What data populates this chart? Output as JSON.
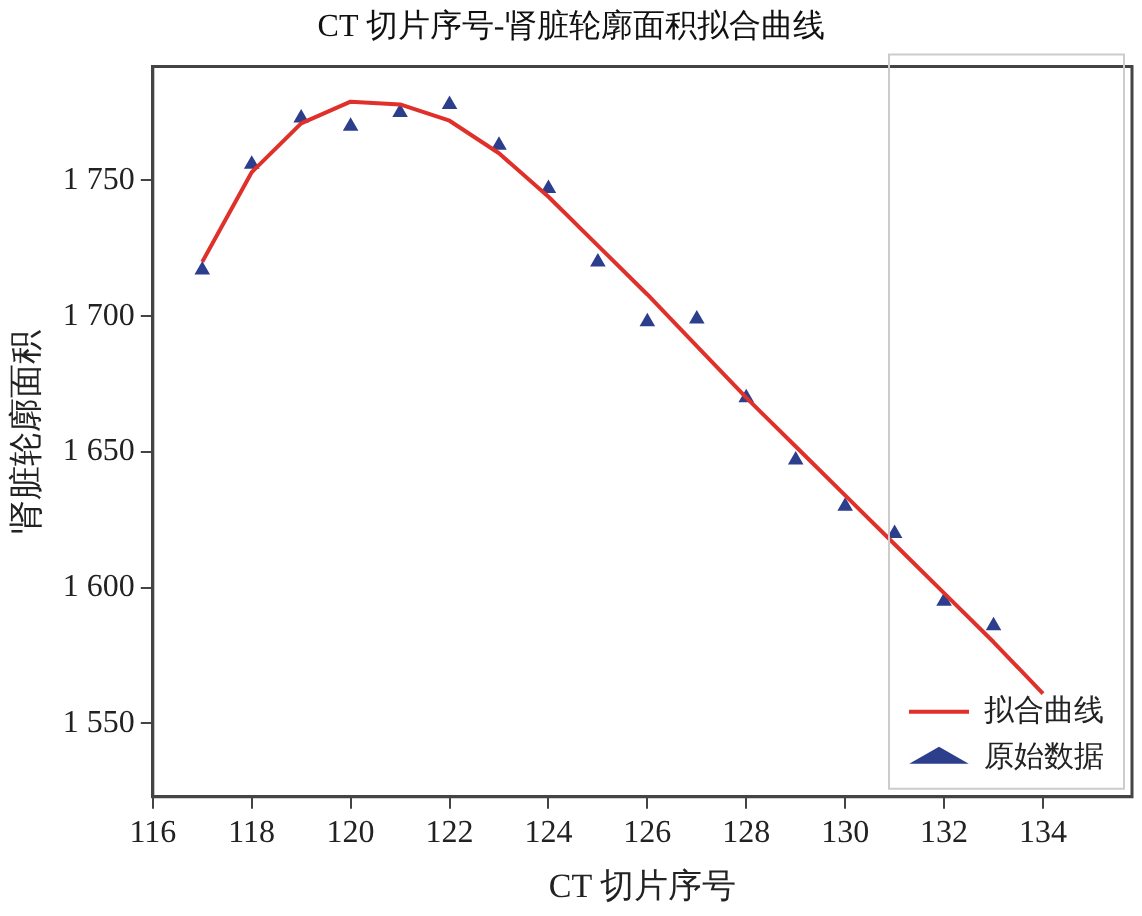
{
  "chart_data": {
    "type": "line",
    "title": "CT 切片序号-肾脏轮廓面积拟合曲线",
    "xlabel": "CT 切片序号",
    "ylabel": "肾脏轮廓面积",
    "xlim": [
      116,
      135.8
    ],
    "xticks": [
      116,
      118,
      120,
      122,
      124,
      126,
      128,
      130,
      132,
      134
    ],
    "ylim": [
      1523,
      1792
    ],
    "yticks": [
      {
        "value": 1550,
        "label": "1 550"
      },
      {
        "value": 1600,
        "label": "1 600"
      },
      {
        "value": 1650,
        "label": "1 650"
      },
      {
        "value": 1700,
        "label": "1 700"
      },
      {
        "value": 1750,
        "label": "1 750"
      }
    ],
    "grid": false,
    "legend": "bottom right",
    "series": [
      {
        "name": "拟合曲线",
        "type": "line",
        "color": "#e0302a",
        "marker": "none",
        "line_style": "solid",
        "x": [
          117,
          118,
          119,
          120,
          121,
          122,
          123,
          124,
          125,
          126,
          127,
          128,
          129,
          130,
          131,
          132,
          133,
          134
        ],
        "values": [
          1720,
          1753,
          1771,
          1779,
          1778,
          1772,
          1760,
          1744,
          1726,
          1708,
          1689,
          1670,
          1652,
          1634,
          1616,
          1598,
          1580,
          1561
        ]
      },
      {
        "name": "原始数据",
        "type": "scatter",
        "color": "#2c3e8c",
        "marker": "triangle",
        "x": [
          117,
          118,
          119,
          120,
          121,
          122,
          123,
          124,
          125,
          126,
          127,
          128,
          129,
          130,
          131,
          132,
          133
        ],
        "values": [
          1717,
          1756,
          1773,
          1770,
          1775,
          1778,
          1763,
          1747,
          1720,
          1698,
          1699,
          1670,
          1647,
          1630,
          1620,
          1595,
          1586
        ]
      }
    ]
  }
}
